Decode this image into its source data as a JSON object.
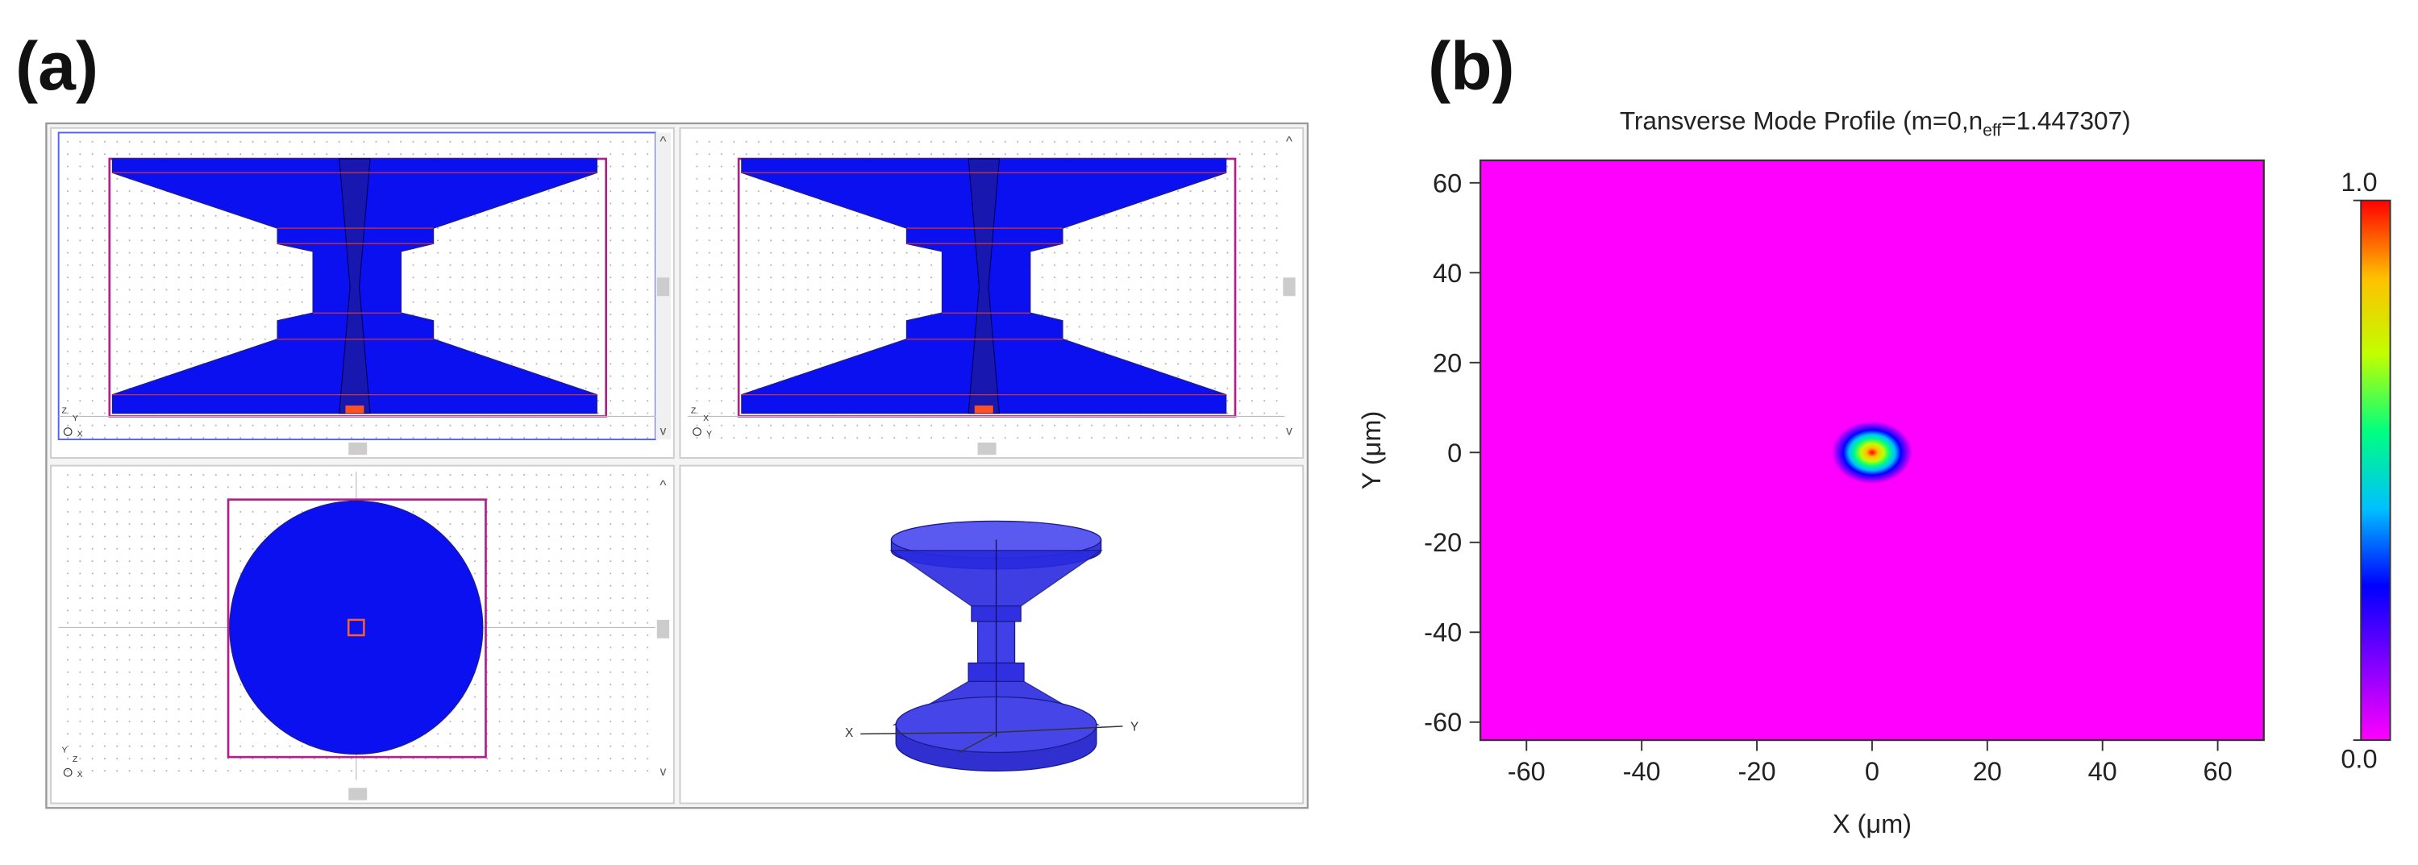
{
  "panel_labels": [
    "(a)",
    "(b)"
  ],
  "cad_views": {
    "top_left_axes": [
      "Z",
      "Y",
      "X"
    ],
    "top_right_axes": [
      "Z",
      "X",
      "Y"
    ],
    "bottom_left_axes": [
      "Y",
      "Z",
      "X"
    ],
    "perspective_axes": [
      "X",
      "Y"
    ]
  },
  "chart_data": {
    "type": "heatmap",
    "title": [
      "Transverse Mode Profile (m=0,n",
      "eff",
      "=1.447307)"
    ],
    "x_label": "X (μm)",
    "y_label": "Y (μm)",
    "xlim": [
      -68,
      68
    ],
    "ylim": [
      -64,
      65
    ],
    "xticks": [
      -60,
      -40,
      -20,
      0,
      20,
      40,
      60
    ],
    "yticks": [
      -60,
      -40,
      -20,
      0,
      20,
      40,
      60
    ],
    "background_value": 0,
    "peak": {
      "x": 0,
      "y": 0,
      "value": 1
    },
    "spot_radius": 7,
    "colormap": [
      "#ff00ff",
      "#8000ff",
      "#0000ff",
      "#00c0ff",
      "#00ff80",
      "#c0ff00",
      "#ffc000",
      "#ff0000"
    ],
    "colorbar_ticks": [
      {
        "value": 0,
        "label": "0.0"
      },
      {
        "value": 1,
        "label": "1.0"
      }
    ]
  }
}
